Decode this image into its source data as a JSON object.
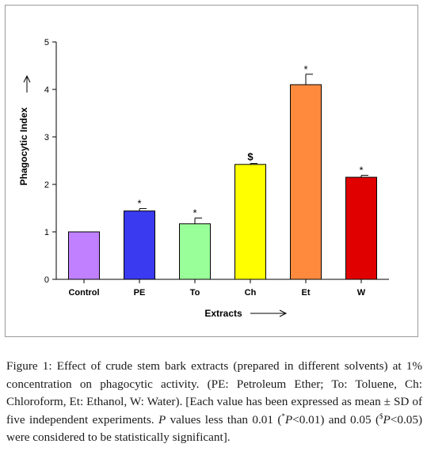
{
  "chart_data": {
    "type": "bar",
    "title": "",
    "xlabel": "Extracts",
    "ylabel": "Phagocytic Index",
    "ylim": [
      0,
      5
    ],
    "yticks": [
      0,
      1,
      2,
      3,
      4,
      5
    ],
    "grid": false,
    "categories": [
      "Control",
      "PE",
      "To",
      "Ch",
      "Et",
      "W"
    ],
    "values": [
      1.0,
      1.44,
      1.17,
      2.42,
      4.1,
      2.15
    ],
    "errors": [
      0.0,
      0.05,
      0.12,
      0.02,
      0.22,
      0.04
    ],
    "colors": [
      "#c080ff",
      "#3a3af0",
      "#99ff99",
      "#ffff00",
      "#ff8a3d",
      "#e00000"
    ],
    "significance": [
      "",
      "*",
      "*",
      "$",
      "*",
      "*"
    ]
  },
  "caption": {
    "label": "Figure 1:",
    "text1": "Effect of crude stem bark extracts (prepared in different solvents) at 1% concentration on phagocytic activity. (PE: Petroleum Ether; To: Toluene, Ch: Chloroform, Et: Ethanol, W: Water). [Each value has been expressed as mean ± SD of five independent experiments.",
    "p_symbol": "P",
    "text2": "values less than 0.01 (",
    "sup_star": "*",
    "p_star_cond": "<0.01) and 0.05 (",
    "sup_dollar": "$",
    "p_dollar_cond": "<0.05) were considered to be statistically significant]."
  }
}
